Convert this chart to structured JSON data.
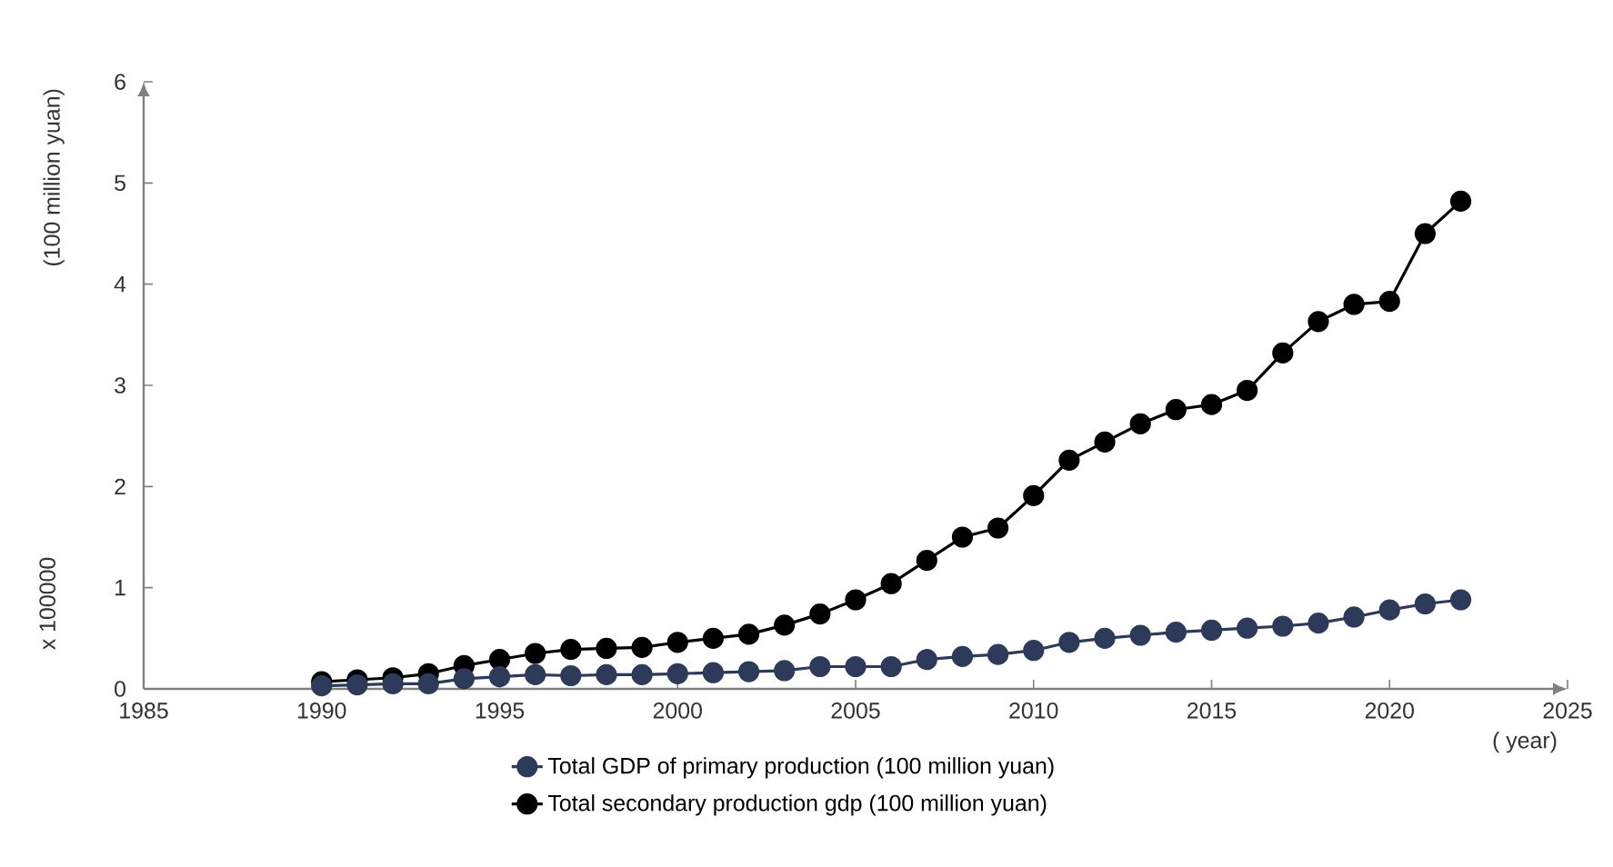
{
  "chart_data": {
    "type": "line",
    "xlabel": "( year)",
    "ylabel": "(100 million yuan)",
    "annotations": [
      "x 100000"
    ],
    "x": [
      1990,
      1991,
      1992,
      1993,
      1994,
      1995,
      1996,
      1997,
      1998,
      1999,
      2000,
      2001,
      2002,
      2003,
      2004,
      2005,
      2006,
      2007,
      2008,
      2009,
      2010,
      2011,
      2012,
      2013,
      2014,
      2015,
      2016,
      2017,
      2018,
      2019,
      2020,
      2021,
      2022
    ],
    "series": [
      {
        "name": "Total GDP of primary production (100 million yuan)",
        "color": "#2e3a59",
        "values": [
          0.03,
          0.04,
          0.05,
          0.05,
          0.1,
          0.12,
          0.14,
          0.13,
          0.14,
          0.14,
          0.15,
          0.16,
          0.17,
          0.18,
          0.22,
          0.22,
          0.22,
          0.29,
          0.32,
          0.34,
          0.38,
          0.46,
          0.5,
          0.53,
          0.56,
          0.58,
          0.6,
          0.62,
          0.65,
          0.71,
          0.78,
          0.84,
          0.88
        ]
      },
      {
        "name": "Total secondary production gdp (100 million yuan)",
        "color": "#000000",
        "values": [
          0.07,
          0.09,
          0.11,
          0.15,
          0.23,
          0.29,
          0.35,
          0.39,
          0.4,
          0.41,
          0.46,
          0.5,
          0.54,
          0.63,
          0.74,
          0.88,
          1.04,
          1.27,
          1.5,
          1.59,
          1.91,
          2.26,
          2.44,
          2.62,
          2.76,
          2.81,
          2.95,
          3.32,
          3.63,
          3.8,
          3.83,
          4.5,
          4.82
        ]
      }
    ],
    "xlim": [
      1985,
      2025
    ],
    "ylim": [
      0,
      6
    ],
    "xticks": [
      1985,
      1990,
      1995,
      2000,
      2005,
      2010,
      2015,
      2020,
      2025
    ],
    "yticks": [
      0,
      1,
      2,
      3,
      4,
      5,
      6
    ],
    "grid": false,
    "legend": "bottom",
    "marker": "circle",
    "line_style": "solid"
  }
}
